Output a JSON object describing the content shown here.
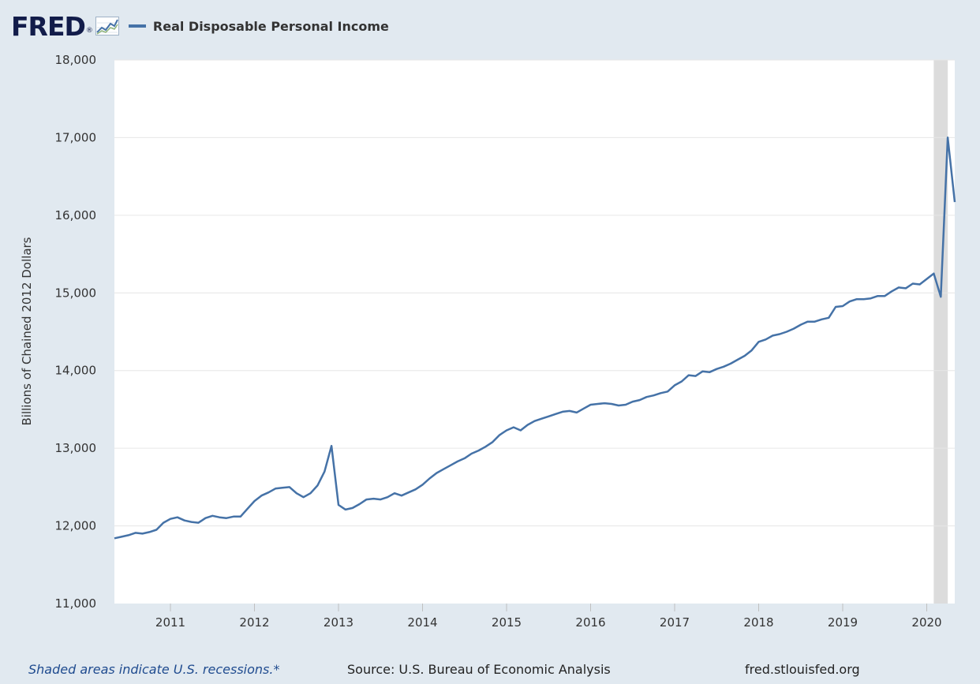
{
  "brand": {
    "logo_text": "FRED",
    "logo_mark": "®"
  },
  "footer": {
    "recession_note": "Shaded areas indicate U.S. recessions.*",
    "source": "Source: U.S. Bureau of Economic Analysis",
    "site": "fred.stlouisfed.org"
  },
  "colors": {
    "line": "#4572a7",
    "recession": "#dcdcdc",
    "background": "#e1e9f0",
    "plot": "#ffffff"
  },
  "chart_data": {
    "type": "line",
    "title": "",
    "xlabel": "",
    "ylabel": "Billions of Chained 2012 Dollars",
    "ylim": [
      11000,
      18000
    ],
    "yticks": [
      11000,
      12000,
      13000,
      14000,
      15000,
      16000,
      17000,
      18000
    ],
    "ytick_labels": [
      "11,000",
      "12,000",
      "13,000",
      "14,000",
      "15,000",
      "16,000",
      "17,000",
      "18,000"
    ],
    "xlim": [
      "2010-05",
      "2020-05"
    ],
    "xticks": [
      "2011-01",
      "2012-01",
      "2013-01",
      "2014-01",
      "2015-01",
      "2016-01",
      "2017-01",
      "2018-01",
      "2019-01",
      "2020-01"
    ],
    "xtick_labels": [
      "2011",
      "2012",
      "2013",
      "2014",
      "2015",
      "2016",
      "2017",
      "2018",
      "2019",
      "2020"
    ],
    "grid": true,
    "recessions": [
      {
        "start": "2020-02",
        "end": "2020-04"
      }
    ],
    "series": [
      {
        "name": "Real Disposable Personal Income",
        "x": [
          "2010-05",
          "2010-06",
          "2010-07",
          "2010-08",
          "2010-09",
          "2010-10",
          "2010-11",
          "2010-12",
          "2011-01",
          "2011-02",
          "2011-03",
          "2011-04",
          "2011-05",
          "2011-06",
          "2011-07",
          "2011-08",
          "2011-09",
          "2011-10",
          "2011-11",
          "2011-12",
          "2012-01",
          "2012-02",
          "2012-03",
          "2012-04",
          "2012-05",
          "2012-06",
          "2012-07",
          "2012-08",
          "2012-09",
          "2012-10",
          "2012-11",
          "2012-12",
          "2013-01",
          "2013-02",
          "2013-03",
          "2013-04",
          "2013-05",
          "2013-06",
          "2013-07",
          "2013-08",
          "2013-09",
          "2013-10",
          "2013-11",
          "2013-12",
          "2014-01",
          "2014-02",
          "2014-03",
          "2014-04",
          "2014-05",
          "2014-06",
          "2014-07",
          "2014-08",
          "2014-09",
          "2014-10",
          "2014-11",
          "2014-12",
          "2015-01",
          "2015-02",
          "2015-03",
          "2015-04",
          "2015-05",
          "2015-06",
          "2015-07",
          "2015-08",
          "2015-09",
          "2015-10",
          "2015-11",
          "2015-12",
          "2016-01",
          "2016-02",
          "2016-03",
          "2016-04",
          "2016-05",
          "2016-06",
          "2016-07",
          "2016-08",
          "2016-09",
          "2016-10",
          "2016-11",
          "2016-12",
          "2017-01",
          "2017-02",
          "2017-03",
          "2017-04",
          "2017-05",
          "2017-06",
          "2017-07",
          "2017-08",
          "2017-09",
          "2017-10",
          "2017-11",
          "2017-12",
          "2018-01",
          "2018-02",
          "2018-03",
          "2018-04",
          "2018-05",
          "2018-06",
          "2018-07",
          "2018-08",
          "2018-09",
          "2018-10",
          "2018-11",
          "2018-12",
          "2019-01",
          "2019-02",
          "2019-03",
          "2019-04",
          "2019-05",
          "2019-06",
          "2019-07",
          "2019-08",
          "2019-09",
          "2019-10",
          "2019-11",
          "2019-12",
          "2020-01",
          "2020-02",
          "2020-03",
          "2020-04",
          "2020-05"
        ],
        "values": [
          11840,
          11860,
          11880,
          11910,
          11900,
          11920,
          11950,
          12040,
          12090,
          12110,
          12070,
          12050,
          12040,
          12100,
          12130,
          12110,
          12100,
          12120,
          12120,
          12220,
          12320,
          12390,
          12430,
          12480,
          12490,
          12500,
          12420,
          12370,
          12420,
          12520,
          12700,
          13030,
          12270,
          12210,
          12230,
          12280,
          12340,
          12350,
          12340,
          12370,
          12420,
          12390,
          12430,
          12470,
          12530,
          12610,
          12680,
          12730,
          12780,
          12830,
          12870,
          12930,
          12970,
          13020,
          13080,
          13170,
          13230,
          13270,
          13230,
          13300,
          13350,
          13380,
          13410,
          13440,
          13470,
          13480,
          13460,
          13510,
          13560,
          13570,
          13580,
          13570,
          13550,
          13560,
          13600,
          13620,
          13660,
          13680,
          13710,
          13730,
          13810,
          13860,
          13940,
          13930,
          13990,
          13980,
          14020,
          14050,
          14090,
          14140,
          14190,
          14260,
          14370,
          14400,
          14450,
          14470,
          14500,
          14540,
          14590,
          14630,
          14630,
          14660,
          14680,
          14820,
          14830,
          14890,
          14920,
          14920,
          14930,
          14960,
          14960,
          15020,
          15070,
          15060,
          15120,
          15110,
          15180,
          15250,
          14950,
          17000,
          16170
        ]
      }
    ]
  }
}
